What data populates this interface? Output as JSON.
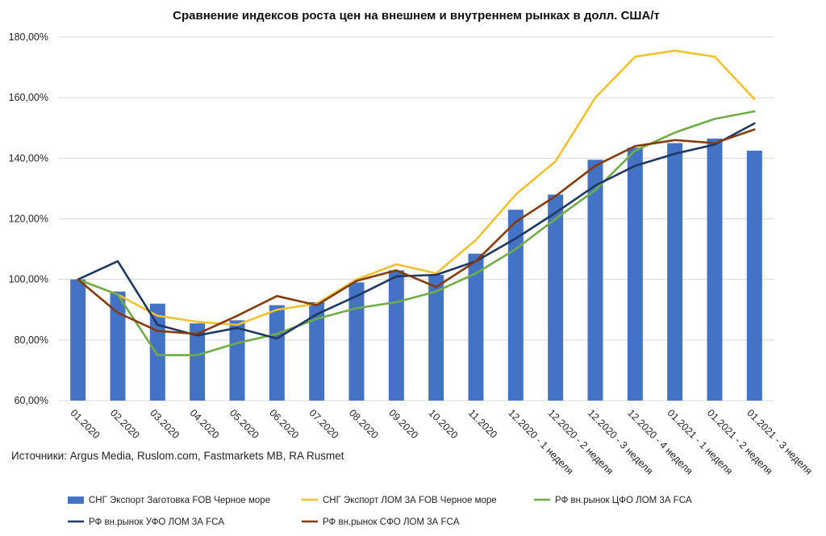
{
  "chart_data": {
    "type": "bar+line",
    "title": "Сравнение индексов роста цен на внешнем и внутреннем рынках в долл. США/т",
    "source_note": "Источники: Argus Media, Ruslom.com, Fastmarkets MB,  RA Rusmet",
    "categories": [
      "01.2020",
      "02.2020",
      "03.2020",
      "04.2020",
      "05.2020",
      "06.2020",
      "07.2020",
      "08.2020",
      "09.2020",
      "10.2020",
      "11.2020",
      "12.2020 - 1 неделя",
      "12.2020 - 2 неделя",
      "12.2020 - 3 неделя",
      "12.2020 - 4 неделя",
      "01.2021 - 1 неделя",
      "01.2021 - 2 неделя",
      "01.2021 - 3 неделя"
    ],
    "yticks": [
      "60,00%",
      "80,00%",
      "100,00%",
      "120,00%",
      "140,00%",
      "160,00%",
      "180,00%"
    ],
    "ylim": [
      60,
      180
    ],
    "grid": true,
    "legend_position": "bottom",
    "series": [
      {
        "name": "СНГ Экспорт Заготовка FOB Черное море",
        "kind": "bar",
        "color": "#4472C4",
        "values": [
          100,
          96,
          92,
          85.5,
          86.5,
          91.5,
          92.5,
          99,
          103,
          101.5,
          108.5,
          123,
          128,
          139.5,
          143.5,
          145,
          146.5,
          142.5
        ]
      },
      {
        "name": "СНГ Экспорт ЛОМ 3А FOB Черное море",
        "kind": "line",
        "color": "#F2C12E",
        "values": [
          100,
          95,
          88,
          86,
          85,
          90,
          92,
          100,
          105,
          102,
          113,
          128,
          139,
          160,
          173.5,
          175.5,
          173.5,
          159.5
        ]
      },
      {
        "name": "РФ вн.рынок ЦФО ЛОМ 3А FCA",
        "kind": "line",
        "color": "#70AD47",
        "values": [
          100,
          95,
          75,
          75,
          79,
          82,
          87,
          90.5,
          92.5,
          96,
          102,
          110,
          120,
          129.5,
          142.5,
          148.5,
          153,
          155.5
        ]
      },
      {
        "name": "РФ вн.рынок УФО ЛОМ 3А FCA",
        "kind": "line",
        "color": "#1F3864",
        "values": [
          100,
          106,
          85,
          81.5,
          84,
          80.5,
          88.5,
          94.5,
          101,
          101.5,
          106,
          113.5,
          122,
          131,
          137.5,
          141.5,
          144.5,
          151.5
        ]
      },
      {
        "name": "РФ вн.рынок СФО ЛОМ 3А FCA",
        "kind": "line",
        "color": "#843C0C",
        "values": [
          100,
          89,
          83,
          82,
          88,
          94.5,
          91.5,
          99.5,
          103,
          97.5,
          106,
          119,
          127.5,
          137.5,
          144,
          146,
          145,
          149.5
        ]
      }
    ]
  }
}
